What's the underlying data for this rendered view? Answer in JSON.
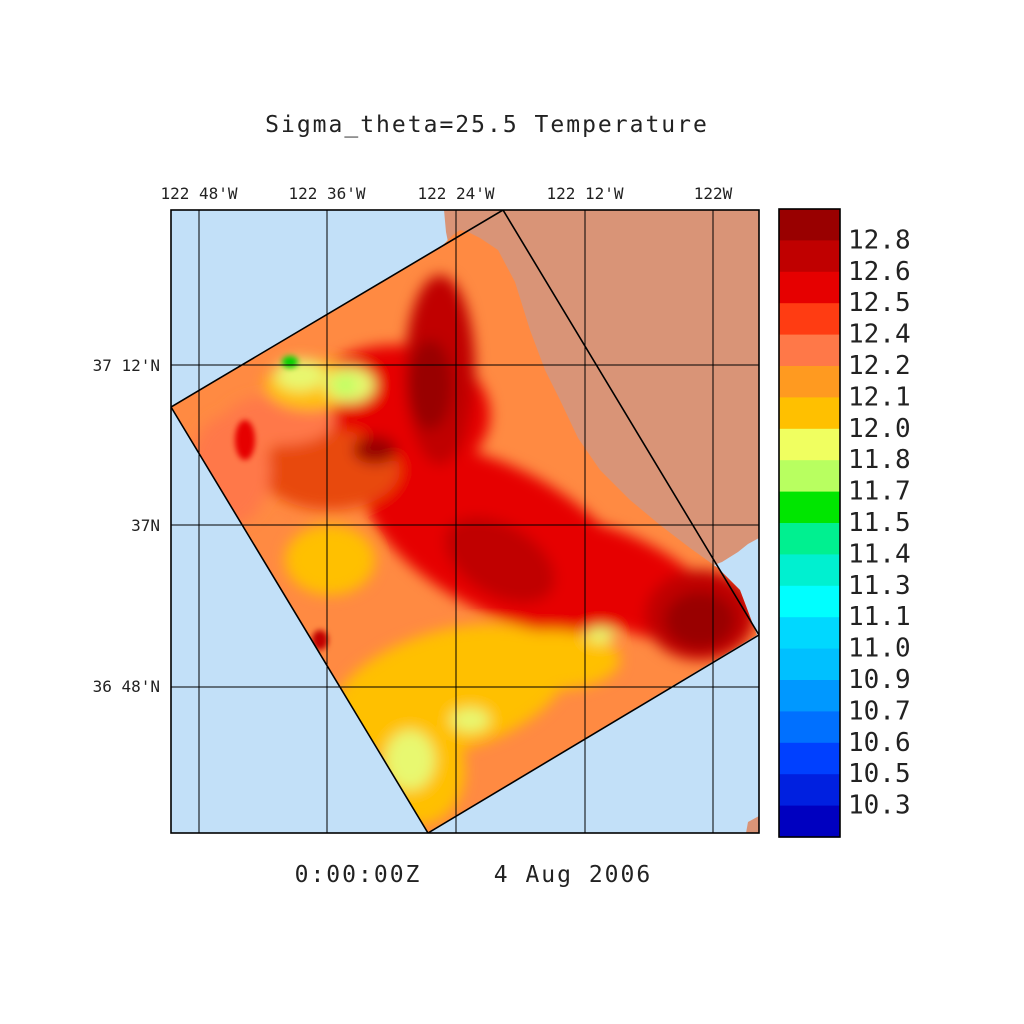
{
  "title": "Sigma_theta=25.5 Temperature",
  "timestamp": {
    "time": "0:00:00Z",
    "date": "4 Aug 2006"
  },
  "map": {
    "lon_labels": [
      "122 48'W",
      "122 36'W",
      "122 24'W",
      "122 12'W",
      "122W"
    ],
    "lat_labels": [
      "37 12'N",
      "37N",
      "36 48'N"
    ],
    "colors": {
      "ocean": "#c2e0f8",
      "land": "#d99477",
      "grid": "#000000",
      "box": "#000000"
    }
  },
  "colorbar": {
    "labels": [
      "12.8",
      "12.6",
      "12.5",
      "12.4",
      "12.2",
      "12.1",
      "12.0",
      "11.8",
      "11.7",
      "11.5",
      "11.4",
      "11.3",
      "11.1",
      "11.0",
      "10.9",
      "10.7",
      "10.6",
      "10.5",
      "10.3"
    ],
    "colors": [
      "#990000",
      "#c00000",
      "#e60000",
      "#ff3c12",
      "#ff7848",
      "#ff9a20",
      "#ffc000",
      "#f0ff60",
      "#b8ff60",
      "#00e600",
      "#00f090",
      "#00f0d0",
      "#00ffff",
      "#00d8ff",
      "#00c0ff",
      "#0098ff",
      "#0070ff",
      "#0040ff",
      "#0020e0",
      "#0000c0"
    ]
  }
}
